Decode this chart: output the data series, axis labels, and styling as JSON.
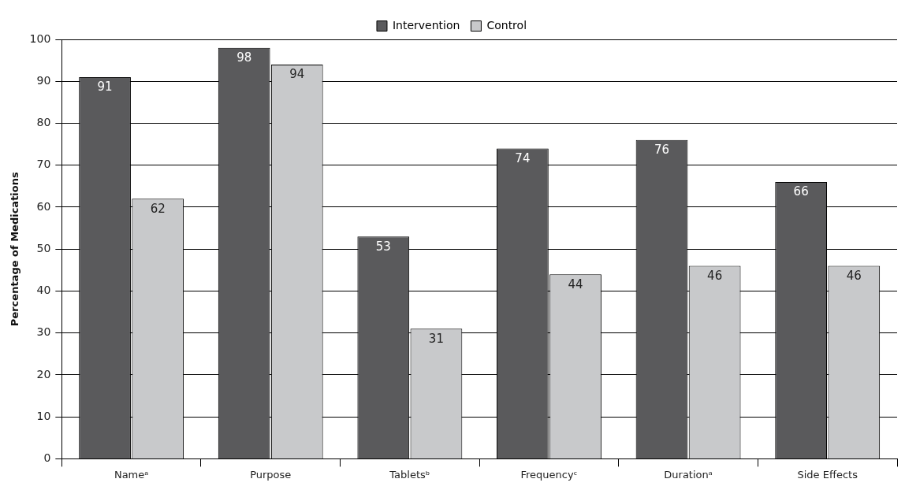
{
  "chart_data": {
    "type": "bar",
    "categories": [
      "Nameᵃ",
      "Purpose",
      "Tabletsᵇ",
      "Frequencyᶜ",
      "Durationᵃ",
      "Side Effects"
    ],
    "series": [
      {
        "name": "Intervention",
        "color": "#5a5a5c",
        "values": [
          91,
          98,
          53,
          74,
          76,
          66
        ]
      },
      {
        "name": "Control",
        "color": "#c8c9cb",
        "values": [
          62,
          94,
          31,
          44,
          46,
          46
        ]
      }
    ],
    "ylabel": "Percentage of Medications",
    "ylim": [
      0,
      100
    ],
    "yticks": [
      0,
      10,
      20,
      30,
      40,
      50,
      60,
      70,
      80,
      90,
      100
    ],
    "grid": "y",
    "legend": "top",
    "data_labels": true
  }
}
